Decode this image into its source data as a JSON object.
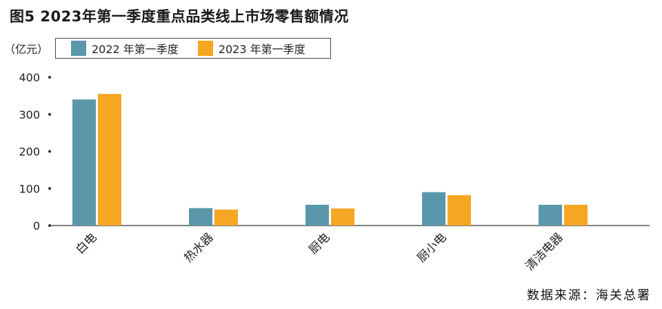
{
  "title": "图5 2023年第一季度重点品类线上市场零售额情况",
  "unit": "（亿元）",
  "source": "数据来源：海关总署",
  "chart_data": {
    "type": "bar",
    "categories": [
      "白电",
      "热水器",
      "厨电",
      "厨小电",
      "清洁电器"
    ],
    "series": [
      {
        "name": "2022 年第一季度",
        "color": "#5b97ab",
        "values": [
          340,
          47,
          56,
          90,
          56
        ]
      },
      {
        "name": "2023 年第一季度",
        "color": "#f5a623",
        "values": [
          355,
          43,
          46,
          82,
          56
        ]
      }
    ],
    "ylim": [
      0,
      400
    ],
    "yticks": [
      0,
      100,
      200,
      300,
      400
    ],
    "ytick_labels": [
      "0",
      "100",
      "200",
      "300",
      "400"
    ],
    "legend_position": "top-left",
    "grid": false
  }
}
